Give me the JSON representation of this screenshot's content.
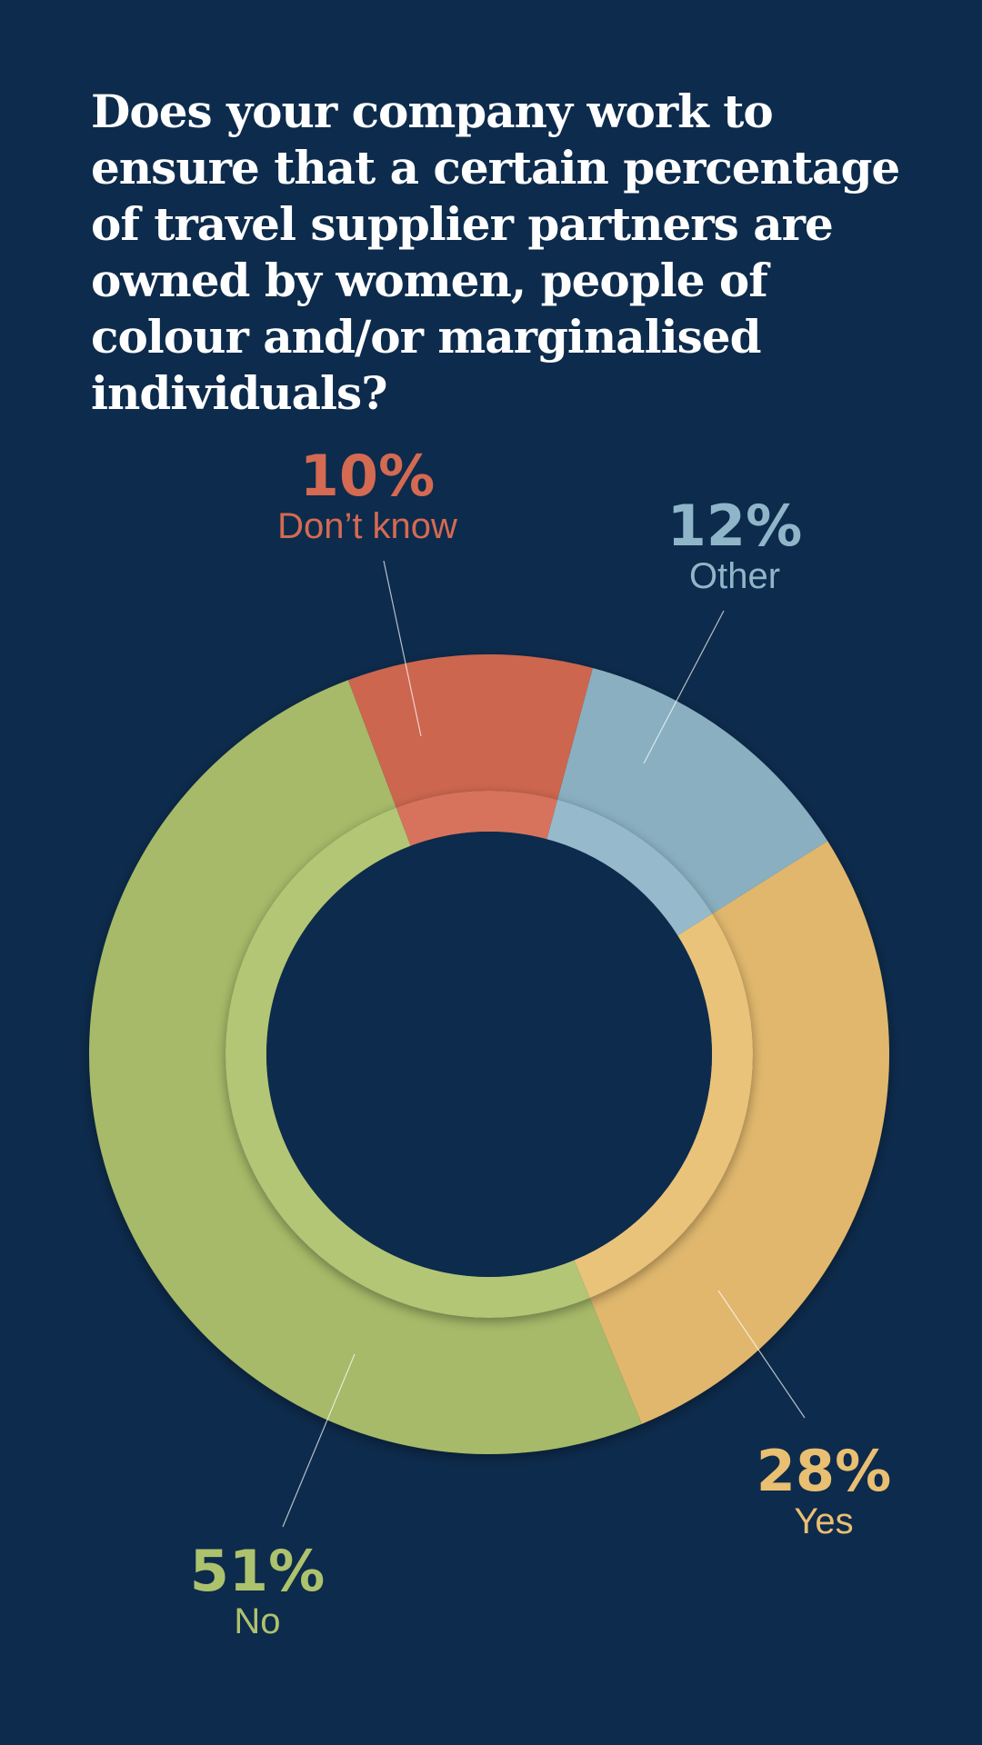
{
  "title": "Does your company work to ensure that a certain percentage of travel supplier partners are owned by women, people of colour and/or marginalised individuals?",
  "colors": {
    "background": "#0d2b4c",
    "title": "#ffffff",
    "yes": "#e9bf72",
    "no": "#adc26d",
    "dont_know": "#d46a52",
    "other": "#8fb6c8"
  },
  "chart_data": {
    "type": "pie",
    "style": "donut",
    "start_category": "Other",
    "direction": "clockwise",
    "categories": [
      "Other",
      "Yes",
      "No",
      "Don’t know"
    ],
    "values": [
      12,
      28,
      51,
      10
    ],
    "labels": [
      "12%",
      "28%",
      "51%",
      "10%"
    ],
    "legend": "none"
  }
}
